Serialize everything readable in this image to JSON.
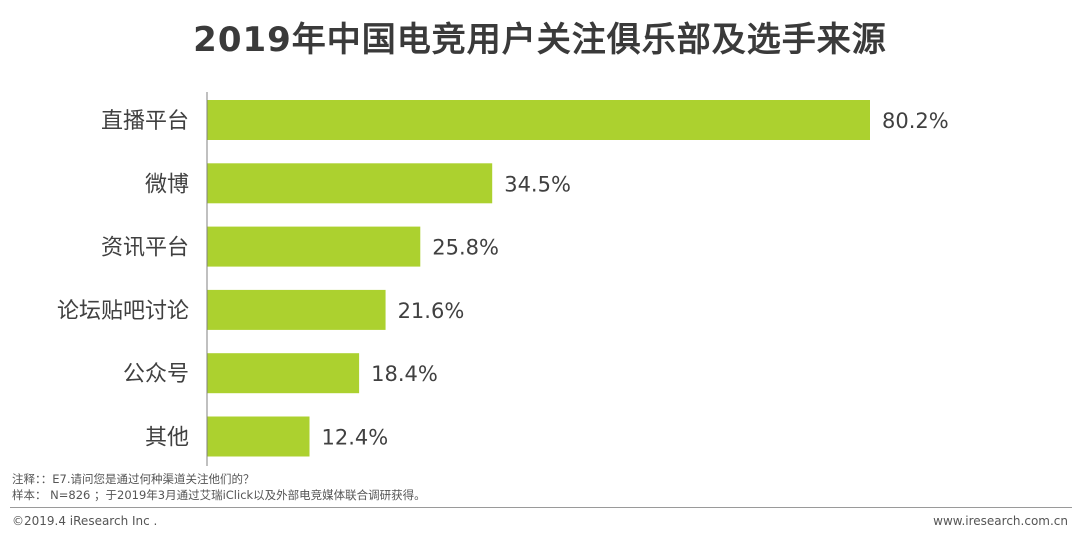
{
  "colors": {
    "bar": "#acd12f",
    "axis": "#808080",
    "label": "#404040"
  },
  "chart_data": {
    "type": "bar",
    "orientation": "horizontal",
    "title": "2019年中国电竞用户关注俱乐部及选手来源",
    "categories": [
      "直播平台",
      "微博",
      "资讯平台",
      "论坛贴吧讨论",
      "公众号",
      "其他"
    ],
    "values": [
      80.2,
      34.5,
      25.8,
      21.6,
      18.4,
      12.4
    ],
    "value_labels": [
      "80.2%",
      "34.5%",
      "25.8%",
      "21.6%",
      "18.4%",
      "12.4%"
    ],
    "unit": "%",
    "xlim": [
      0,
      100
    ],
    "grid": false,
    "legend": "none"
  },
  "notes": {
    "line1": "注释：：E7.请问您是通过何种渠道关注他们的？",
    "line2": "样本： N=826 ；于2019年3月通过艾瑞iClick以及外部电竞媒体联合调研获得。"
  },
  "footer": {
    "copyright": "©2019.4 iResearch Inc .",
    "website": "www.iresearch.com.cn"
  }
}
